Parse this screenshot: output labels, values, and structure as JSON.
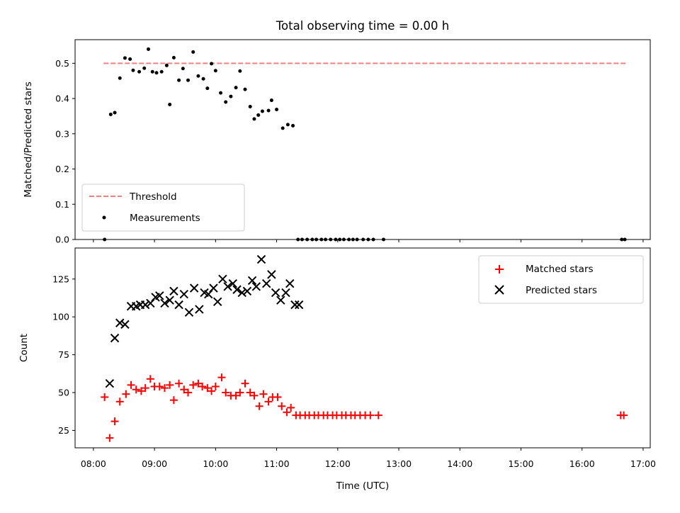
{
  "chart_data": [
    {
      "type": "scatter",
      "title": "Total observing time = 0.00 h",
      "xlabel": "",
      "ylabel": "Matched/Predicted stars",
      "xlim": [
        "07:42",
        "17:07"
      ],
      "ylim": [
        0,
        0.567
      ],
      "yticks": [
        "0.0",
        "0.1",
        "0.2",
        "0.3",
        "0.4",
        "0.5"
      ],
      "legend_position": "lower-left",
      "colors": {
        "threshold": "#f08080",
        "measurements": "#000000"
      },
      "series": [
        {
          "name": "Threshold",
          "style": "dashed-line",
          "x": [
            "08:10",
            "16:45"
          ],
          "y": [
            0.5,
            0.5
          ]
        },
        {
          "name": "Measurements",
          "style": "dot",
          "x": [
            "08:11",
            "08:17",
            "08:21",
            "08:26",
            "08:31",
            "08:36",
            "08:39",
            "08:45",
            "08:50",
            "08:54",
            "08:58",
            "09:02",
            "09:07",
            "09:12",
            "09:15",
            "09:19",
            "09:24",
            "09:28",
            "09:33",
            "09:38",
            "09:43",
            "09:48",
            "09:52",
            "09:56",
            "10:00",
            "10:05",
            "10:10",
            "10:15",
            "10:20",
            "10:24",
            "10:29",
            "10:34",
            "10:38",
            "10:42",
            "10:46",
            "10:52",
            "10:55",
            "11:00",
            "11:06",
            "11:11",
            "11:16",
            "11:21",
            "11:25",
            "11:30",
            "11:35",
            "11:39",
            "11:44",
            "11:48",
            "11:53",
            "11:58",
            "12:02",
            "12:06",
            "12:11",
            "12:15",
            "12:19",
            "12:25",
            "12:30",
            "12:35",
            "12:45",
            "16:39",
            "16:42"
          ],
          "y": [
            0.0,
            0.355,
            0.36,
            0.458,
            0.515,
            0.512,
            0.48,
            0.476,
            0.486,
            0.54,
            0.476,
            0.473,
            0.476,
            0.494,
            0.383,
            0.516,
            0.452,
            0.485,
            0.452,
            0.532,
            0.464,
            0.456,
            0.429,
            0.499,
            0.479,
            0.416,
            0.39,
            0.406,
            0.431,
            0.478,
            0.426,
            0.377,
            0.342,
            0.353,
            0.364,
            0.366,
            0.395,
            0.369,
            0.316,
            0.326,
            0.323,
            0.0,
            0.0,
            0.0,
            0.0,
            0.0,
            0.0,
            0.0,
            0.0,
            0.0,
            0.0,
            0.0,
            0.0,
            0.0,
            0.0,
            0.0,
            0.0,
            0.0,
            0.0,
            0.0,
            0.0
          ]
        }
      ]
    },
    {
      "type": "scatter",
      "title": "",
      "xlabel": "Time (UTC)",
      "ylabel": "Count",
      "xlim": [
        "07:42",
        "17:07"
      ],
      "ylim": [
        13.5,
        145.5
      ],
      "xticks": [
        "08:00",
        "09:00",
        "10:00",
        "11:00",
        "12:00",
        "13:00",
        "14:00",
        "15:00",
        "16:00",
        "17:00"
      ],
      "yticks": [
        "25",
        "50",
        "75",
        "100",
        "125"
      ],
      "legend_position": "upper-right",
      "colors": {
        "matched": "#ff0000",
        "predicted": "#000000"
      },
      "series": [
        {
          "name": "Matched stars",
          "marker": "+",
          "x": [
            "08:11",
            "08:16",
            "08:21",
            "08:26",
            "08:32",
            "08:37",
            "08:42",
            "08:47",
            "08:51",
            "08:56",
            "09:00",
            "09:05",
            "09:10",
            "09:15",
            "09:19",
            "09:24",
            "09:29",
            "09:33",
            "09:38",
            "09:43",
            "09:47",
            "09:52",
            "09:56",
            "10:00",
            "10:06",
            "10:10",
            "10:15",
            "10:20",
            "10:24",
            "10:29",
            "10:34",
            "10:38",
            "10:43",
            "10:47",
            "10:52",
            "10:56",
            "11:01",
            "11:05",
            "11:10",
            "11:14",
            "11:19",
            "11:23",
            "11:28",
            "11:32",
            "11:37",
            "11:41",
            "11:46",
            "11:50",
            "11:55",
            "11:59",
            "12:04",
            "12:08",
            "12:13",
            "12:17",
            "12:22",
            "12:27",
            "12:32",
            "12:40",
            "16:38",
            "16:41"
          ],
          "y": [
            47,
            20,
            31,
            44,
            49,
            55,
            52,
            51,
            53,
            59,
            54,
            54,
            53,
            55,
            45,
            56,
            52,
            50,
            55,
            56,
            54,
            53,
            51,
            54,
            60,
            50,
            48,
            48,
            50,
            56,
            50,
            48,
            41,
            49,
            44,
            47,
            47,
            41,
            37,
            40,
            35,
            35,
            35,
            35,
            35,
            35,
            35,
            35,
            35,
            35,
            35,
            35,
            35,
            35,
            35,
            35,
            35,
            35,
            35,
            35
          ]
        },
        {
          "name": "Predicted stars",
          "marker": "x",
          "x": [
            "08:16",
            "08:21",
            "08:26",
            "08:31",
            "08:37",
            "08:42",
            "08:46",
            "08:51",
            "08:56",
            "09:01",
            "09:05",
            "09:10",
            "09:15",
            "09:19",
            "09:24",
            "09:29",
            "09:34",
            "09:39",
            "09:44",
            "09:49",
            "09:53",
            "09:58",
            "10:02",
            "10:07",
            "10:12",
            "10:17",
            "10:21",
            "10:26",
            "10:31",
            "10:36",
            "10:40",
            "10:45",
            "10:50",
            "10:55",
            "10:59",
            "11:04",
            "11:09",
            "11:13",
            "11:18",
            "11:22"
          ],
          "y": [
            56,
            86,
            96,
            95,
            107,
            107,
            108,
            108,
            109,
            113,
            114,
            109,
            111,
            117,
            108,
            115,
            103,
            119,
            105,
            116,
            115,
            119,
            110,
            125,
            120,
            122,
            118,
            116,
            117,
            124,
            120,
            138,
            122,
            128,
            116,
            111,
            116,
            122,
            108,
            108
          ]
        }
      ]
    }
  ]
}
